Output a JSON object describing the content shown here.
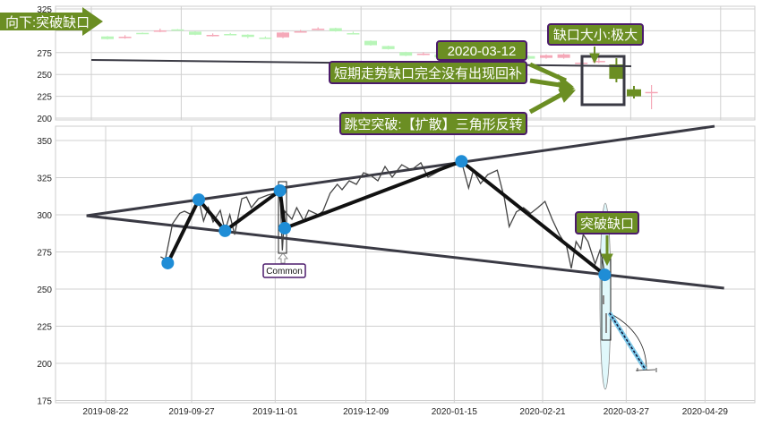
{
  "colors": {
    "olive": "#6b8e23",
    "annBorder": "#4b1a6b",
    "pivot": "#1f8dd6",
    "up": "#b8f5b8",
    "down": "#f5a8b8",
    "trend": "#3a3a44",
    "grid": "#d0d0d0"
  },
  "chart_data": [
    {
      "type": "candlestick",
      "panel": "top",
      "yticks": [
        200,
        225,
        250,
        275,
        325
      ],
      "ylim": [
        198,
        328
      ],
      "candles": [
        {
          "o": 290.5,
          "c": 293.5,
          "h": 294,
          "l": 290,
          "dir": "up"
        },
        {
          "o": 293.2,
          "c": 293.2,
          "h": 295,
          "l": 291,
          "dir": "down"
        },
        {
          "o": 297,
          "c": 297.6,
          "h": 298,
          "l": 296.8,
          "dir": "up"
        },
        {
          "o": 300.4,
          "c": 300.4,
          "h": 302.5,
          "l": 298.5,
          "dir": "down"
        },
        {
          "o": 301.2,
          "c": 301.6,
          "h": 302,
          "l": 301,
          "dir": "up"
        },
        {
          "o": 295.5,
          "c": 299,
          "h": 299.5,
          "l": 295,
          "dir": "up"
        },
        {
          "o": 295.3,
          "c": 295.3,
          "h": 297,
          "l": 293.5,
          "dir": "down"
        },
        {
          "o": 296.3,
          "c": 296.3,
          "h": 297.5,
          "l": 295,
          "dir": "up"
        },
        {
          "o": 293,
          "c": 295.5,
          "h": 296,
          "l": 291.5,
          "dir": "up"
        },
        {
          "o": 292.2,
          "c": 292.2,
          "h": 293.5,
          "l": 291,
          "dir": "up"
        },
        {
          "o": 292.5,
          "c": 298,
          "h": 298.5,
          "l": 291.5,
          "dir": "down"
        },
        {
          "o": 299.4,
          "c": 299.4,
          "h": 301,
          "l": 298,
          "dir": "down"
        },
        {
          "o": 302.4,
          "c": 302.4,
          "h": 304,
          "l": 300.8,
          "dir": "down"
        },
        {
          "o": 299.5,
          "c": 303,
          "h": 303.5,
          "l": 299,
          "dir": "up"
        },
        {
          "o": 297.3,
          "c": 297.3,
          "h": 299,
          "l": 296,
          "dir": "up"
        },
        {
          "o": 283.5,
          "c": 288.5,
          "h": 289,
          "l": 283,
          "dir": "up"
        },
        {
          "o": 279,
          "c": 282.5,
          "h": 283,
          "l": 278.5,
          "dir": "up"
        },
        {
          "o": 271.5,
          "c": 275.5,
          "h": 276,
          "l": 271,
          "dir": "up"
        },
        {
          "o": 273.8,
          "c": 273.8,
          "h": 275.5,
          "l": 272,
          "dir": "down"
        },
        {
          "o": 269.5,
          "c": 273,
          "h": 273.5,
          "l": 269,
          "dir": "up"
        },
        {
          "o": 271.7,
          "c": 271.7,
          "h": 273,
          "l": 270,
          "dir": "up"
        },
        {
          "o": 270,
          "c": 272,
          "h": 273,
          "l": 269,
          "dir": "up"
        },
        {
          "o": 272,
          "c": 274,
          "h": 275,
          "l": 271,
          "dir": "down"
        },
        {
          "o": 270,
          "c": 272.5,
          "h": 273,
          "l": 269,
          "dir": "down"
        },
        {
          "o": 268,
          "c": 271,
          "h": 272,
          "l": 267,
          "dir": "up"
        },
        {
          "o": 269,
          "c": 272,
          "h": 273,
          "l": 268,
          "dir": "down"
        },
        {
          "o": 269,
          "c": 273,
          "h": 274,
          "l": 268,
          "dir": "down"
        },
        {
          "o": 263.5,
          "c": 263.5,
          "h": 268,
          "l": 261,
          "dir": "down"
        },
        {
          "o": 265.5,
          "c": 265.5,
          "h": 270,
          "l": 263,
          "dir": "down"
        },
        {
          "o": 261.5,
          "c": 245,
          "h": 268.6,
          "l": 241,
          "dir": "up",
          "highlight": true
        },
        {
          "o": 233,
          "c": 225,
          "h": 236.9,
          "l": 222.5,
          "dir": "up",
          "highlight": true
        },
        {
          "o": 230,
          "c": 230,
          "h": 237.9,
          "l": 210.2,
          "dir": "down"
        }
      ],
      "trendline": {
        "from": 266.6,
        "to": 259.4
      }
    },
    {
      "type": "line",
      "panel": "bottom",
      "xticks": [
        "2019-08-22",
        "2019-09-27",
        "2019-11-01",
        "2019-12-09",
        "2020-01-15",
        "2020-02-21",
        "2020-03-27",
        "2020-04-29"
      ],
      "yticks": [
        175,
        200,
        225,
        250,
        275,
        300,
        325,
        350
      ],
      "ylim": [
        174,
        360
      ],
      "grid": true,
      "price": [
        [
          "2019-09-14",
          271.7
        ],
        [
          "2019-09-16",
          270
        ],
        [
          "2019-09-19",
          294
        ],
        [
          "2019-09-22",
          301
        ],
        [
          "2019-09-24",
          302.4
        ],
        [
          "2019-09-27",
          300
        ],
        [
          "2019-09-30",
          310.2
        ],
        [
          "2019-10-02",
          295.8
        ],
        [
          "2019-10-04",
          304.8
        ],
        [
          "2019-10-06",
          295.2
        ],
        [
          "2019-10-09",
          303
        ],
        [
          "2019-10-11",
          289.2
        ],
        [
          "2019-10-13",
          300
        ],
        [
          "2019-10-15",
          286.7
        ],
        [
          "2019-10-18",
          310.8
        ],
        [
          "2019-10-20",
          312
        ],
        [
          "2019-10-22",
          304.8
        ],
        [
          "2019-10-25",
          310.8
        ],
        [
          "2019-10-29",
          313.3
        ],
        [
          "2019-11-01",
          314.5
        ],
        [
          "2019-11-03",
          316.3
        ],
        [
          "2019-11-04",
          276
        ],
        [
          "2019-11-05",
          302.4
        ],
        [
          "2019-11-08",
          297
        ],
        [
          "2019-11-10",
          304.8
        ],
        [
          "2019-11-13",
          295.8
        ],
        [
          "2019-11-15",
          303
        ],
        [
          "2019-11-19",
          300
        ],
        [
          "2019-11-21",
          302.4
        ],
        [
          "2019-11-24",
          314.5
        ],
        [
          "2019-11-27",
          320.5
        ],
        [
          "2019-11-29",
          316.9
        ],
        [
          "2019-12-02",
          322.9
        ],
        [
          "2019-12-05",
          320.5
        ],
        [
          "2019-12-08",
          328.3
        ],
        [
          "2019-12-11",
          326.5
        ],
        [
          "2019-12-14",
          322.9
        ],
        [
          "2019-12-17",
          332.5
        ],
        [
          "2019-12-20",
          325.3
        ],
        [
          "2019-12-24",
          333.7
        ],
        [
          "2019-12-28",
          330.1
        ],
        [
          "2020-01-01",
          335
        ],
        [
          "2020-01-04",
          325.3
        ],
        [
          "2020-01-08",
          328.9
        ],
        [
          "2020-01-12",
          332.5
        ],
        [
          "2020-01-16",
          333.7
        ],
        [
          "2020-01-18",
          336
        ],
        [
          "2020-01-21",
          318
        ],
        [
          "2020-01-23",
          330
        ],
        [
          "2020-01-26",
          321
        ],
        [
          "2020-01-29",
          327
        ],
        [
          "2020-02-02",
          330
        ],
        [
          "2020-02-05",
          311
        ],
        [
          "2020-02-07",
          292
        ],
        [
          "2020-02-10",
          302
        ],
        [
          "2020-02-13",
          304.8
        ],
        [
          "2020-02-16",
          301
        ],
        [
          "2020-02-19",
          304.8
        ],
        [
          "2020-02-22",
          309
        ],
        [
          "2020-02-25",
          297
        ],
        [
          "2020-02-28",
          286.7
        ],
        [
          "2020-03-02",
          279
        ],
        [
          "2020-03-04",
          263.9
        ],
        [
          "2020-03-06",
          282
        ],
        [
          "2020-03-08",
          277
        ],
        [
          "2020-03-09",
          286.7
        ],
        [
          "2020-03-11",
          282
        ],
        [
          "2020-03-14",
          266.9
        ],
        [
          "2020-03-16",
          276
        ],
        [
          "2020-03-17",
          270
        ],
        [
          "2020-03-18",
          260
        ]
      ],
      "pivots": [
        [
          "2019-09-17",
          267.5
        ],
        [
          "2019-09-30",
          310.2
        ],
        [
          "2019-10-11",
          289.2
        ],
        [
          "2019-11-03",
          316.3
        ],
        [
          "2019-11-05",
          291
        ],
        [
          "2020-01-18",
          336
        ],
        [
          "2020-03-18",
          259.6
        ]
      ],
      "upper_trendline": [
        [
          "2019-08-14",
          299.4
        ],
        [
          "2020-05-03",
          359.6
        ]
      ],
      "lower_trendline": [
        [
          "2019-08-14",
          299.4
        ],
        [
          "2020-05-07",
          250.6
        ]
      ],
      "gap_projection": [
        [
          "2020-03-20",
          234
        ],
        [
          "2020-04-04",
          196
        ]
      ]
    }
  ],
  "annotations": {
    "direction": "向下:突破缺口",
    "date": "2020-03-12",
    "not_filled": "短期走势缺口完全没有出现回补",
    "pattern": "跳空突破:【扩散】三角形反转",
    "gap_size": "缺口大小:极大",
    "breakaway": "突破缺口",
    "common": "Common"
  }
}
